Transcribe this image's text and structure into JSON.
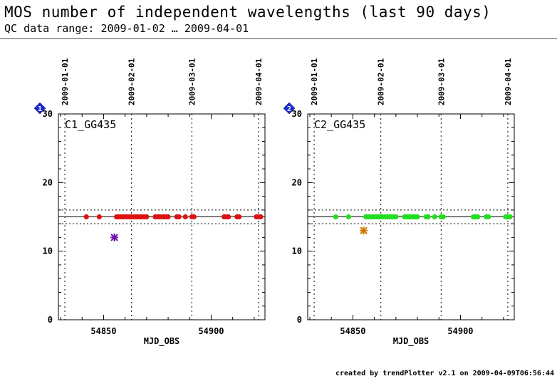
{
  "header": {
    "title": "MOS number of independent wavelengths (last 90 days)",
    "subtitle": "QC data range: 2009-01-02 … 2009-04-01"
  },
  "footer": {
    "text": "created by trendPlotter v2.1 on 2009-04-09T06:56:44"
  },
  "colors": {
    "red": "#dd1111",
    "green": "#22dd22",
    "purple": "#6a0dad",
    "orange": "#cc7a00",
    "badge": "#1a2bd6"
  },
  "chart_data": [
    {
      "type": "scatter",
      "badge": "1",
      "label": "C1_GG435",
      "xlabel": "MJD_OBS",
      "ylabel": "",
      "xlim": [
        54829,
        54925
      ],
      "ylim": [
        0,
        30
      ],
      "xticks": [
        54850,
        54900
      ],
      "yticks": [
        0,
        10,
        20,
        30
      ],
      "dates": [
        {
          "label": "2009-01-01",
          "x": 54832
        },
        {
          "label": "2009-02-01",
          "x": 54863
        },
        {
          "label": "2009-03-01",
          "x": 54891
        },
        {
          "label": "2009-04-01",
          "x": 54922
        }
      ],
      "reference": {
        "mean": 15,
        "lower": 14,
        "upper": 16
      },
      "series": [
        {
          "color": "red",
          "marker": "dot",
          "x": [
            54842,
            54848,
            54856,
            54857,
            54858,
            54859,
            54860,
            54861,
            54862,
            54863,
            54864,
            54865,
            54866,
            54867,
            54868,
            54869,
            54870,
            54874,
            54875,
            54876,
            54877,
            54878,
            54879,
            54880,
            54884,
            54885,
            54888,
            54891,
            54892,
            54906,
            54907,
            54908,
            54912,
            54913,
            54921,
            54922,
            54923
          ],
          "y": [
            15,
            15,
            15,
            15,
            15,
            15,
            15,
            15,
            15,
            15,
            15,
            15,
            15,
            15,
            15,
            15,
            15,
            15,
            15,
            15,
            15,
            15,
            15,
            15,
            15,
            15,
            15,
            15,
            15,
            15,
            15,
            15,
            15,
            15,
            15,
            15,
            15
          ]
        },
        {
          "color": "purple",
          "marker": "star",
          "x": [
            54855
          ],
          "y": [
            12
          ]
        }
      ]
    },
    {
      "type": "scatter",
      "badge": "2",
      "label": "C2_GG435",
      "xlabel": "MJD_OBS",
      "ylabel": "",
      "xlim": [
        54829,
        54925
      ],
      "ylim": [
        0,
        30
      ],
      "xticks": [
        54850,
        54900
      ],
      "yticks": [
        0,
        10,
        20,
        30
      ],
      "dates": [
        {
          "label": "2009-01-01",
          "x": 54832
        },
        {
          "label": "2009-02-01",
          "x": 54863
        },
        {
          "label": "2009-03-01",
          "x": 54891
        },
        {
          "label": "2009-04-01",
          "x": 54922
        }
      ],
      "reference": {
        "mean": 15,
        "lower": 14,
        "upper": 16
      },
      "series": [
        {
          "color": "green",
          "marker": "dot",
          "x": [
            54842,
            54848,
            54856,
            54857,
            54858,
            54859,
            54860,
            54861,
            54862,
            54863,
            54864,
            54865,
            54866,
            54867,
            54868,
            54869,
            54870,
            54874,
            54875,
            54876,
            54877,
            54878,
            54879,
            54880,
            54884,
            54885,
            54888,
            54891,
            54892,
            54906,
            54907,
            54908,
            54912,
            54913,
            54921,
            54922,
            54923
          ],
          "y": [
            15,
            15,
            15,
            15,
            15,
            15,
            15,
            15,
            15,
            15,
            15,
            15,
            15,
            15,
            15,
            15,
            15,
            15,
            15,
            15,
            15,
            15,
            15,
            15,
            15,
            15,
            15,
            15,
            15,
            15,
            15,
            15,
            15,
            15,
            15,
            15,
            15
          ]
        },
        {
          "color": "orange",
          "marker": "star",
          "x": [
            54855
          ],
          "y": [
            13
          ]
        }
      ]
    }
  ]
}
